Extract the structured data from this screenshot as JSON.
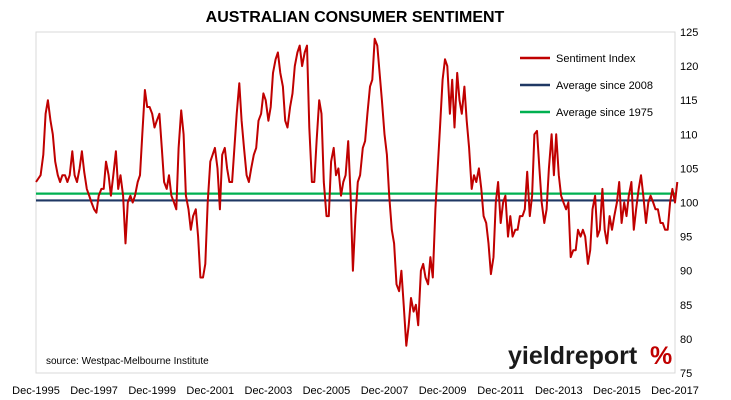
{
  "chart_data": {
    "type": "line",
    "title": "AUSTRALIAN CONSUMER SENTIMENT",
    "ylim": [
      75,
      125
    ],
    "yticks": [
      75,
      80,
      85,
      90,
      95,
      100,
      105,
      110,
      115,
      120,
      125
    ],
    "xtick_labels": [
      "Dec-1995",
      "Dec-1997",
      "Dec-1999",
      "Dec-2001",
      "Dec-2003",
      "Dec-2005",
      "Dec-2007",
      "Dec-2009",
      "Dec-2011",
      "Dec-2013",
      "Dec-2015",
      "Dec-2017"
    ],
    "xlim": [
      1995.92,
      2017.92
    ],
    "grid": false,
    "legend_position": "top-right",
    "source": "source: Westpac-Melbourne Institute",
    "series": [
      {
        "name": "Sentiment Index",
        "color": "#c00000",
        "type": "line",
        "points": [
          [
            1995.92,
            103
          ],
          [
            1996.08,
            104
          ],
          [
            1996.17,
            107
          ],
          [
            1996.25,
            113
          ],
          [
            1996.33,
            115
          ],
          [
            1996.42,
            112
          ],
          [
            1996.5,
            110
          ],
          [
            1996.58,
            106
          ],
          [
            1996.67,
            104
          ],
          [
            1996.75,
            103
          ],
          [
            1996.83,
            104
          ],
          [
            1996.92,
            104
          ],
          [
            1997.0,
            103
          ],
          [
            1997.08,
            104
          ],
          [
            1997.17,
            107.5
          ],
          [
            1997.25,
            104
          ],
          [
            1997.33,
            103
          ],
          [
            1997.42,
            105
          ],
          [
            1997.5,
            107.5
          ],
          [
            1997.58,
            104.5
          ],
          [
            1997.67,
            102
          ],
          [
            1997.75,
            101
          ],
          [
            1997.83,
            100
          ],
          [
            1997.92,
            99
          ],
          [
            1998.0,
            98.5
          ],
          [
            1998.08,
            101
          ],
          [
            1998.17,
            102
          ],
          [
            1998.25,
            102
          ],
          [
            1998.33,
            106
          ],
          [
            1998.42,
            104
          ],
          [
            1998.5,
            101
          ],
          [
            1998.58,
            104
          ],
          [
            1998.67,
            107.5
          ],
          [
            1998.75,
            102
          ],
          [
            1998.83,
            104
          ],
          [
            1998.92,
            101
          ],
          [
            1999.0,
            94
          ],
          [
            1999.08,
            100
          ],
          [
            1999.17,
            101
          ],
          [
            1999.25,
            100
          ],
          [
            1999.33,
            101
          ],
          [
            1999.42,
            103
          ],
          [
            1999.5,
            104
          ],
          [
            1999.58,
            110
          ],
          [
            1999.67,
            116.5
          ],
          [
            1999.75,
            114
          ],
          [
            1999.83,
            114
          ],
          [
            1999.92,
            113
          ],
          [
            2000.0,
            111
          ],
          [
            2000.08,
            112
          ],
          [
            2000.17,
            113
          ],
          [
            2000.25,
            108
          ],
          [
            2000.33,
            103
          ],
          [
            2000.42,
            102
          ],
          [
            2000.5,
            104
          ],
          [
            2000.58,
            101
          ],
          [
            2000.67,
            100
          ],
          [
            2000.75,
            99
          ],
          [
            2000.83,
            108
          ],
          [
            2000.92,
            113.5
          ],
          [
            2001.0,
            110
          ],
          [
            2001.08,
            101
          ],
          [
            2001.17,
            99
          ],
          [
            2001.25,
            96
          ],
          [
            2001.33,
            98
          ],
          [
            2001.42,
            99
          ],
          [
            2001.5,
            95
          ],
          [
            2001.58,
            89
          ],
          [
            2001.67,
            89
          ],
          [
            2001.75,
            91
          ],
          [
            2001.83,
            100
          ],
          [
            2001.92,
            106
          ],
          [
            2002.0,
            107
          ],
          [
            2002.08,
            108
          ],
          [
            2002.17,
            105
          ],
          [
            2002.25,
            99
          ],
          [
            2002.33,
            107
          ],
          [
            2002.42,
            108
          ],
          [
            2002.5,
            105
          ],
          [
            2002.58,
            103
          ],
          [
            2002.67,
            103
          ],
          [
            2002.75,
            108
          ],
          [
            2002.83,
            113
          ],
          [
            2002.92,
            117.5
          ],
          [
            2003.0,
            112
          ],
          [
            2003.08,
            108
          ],
          [
            2003.17,
            104
          ],
          [
            2003.25,
            103
          ],
          [
            2003.33,
            105
          ],
          [
            2003.42,
            107
          ],
          [
            2003.5,
            108
          ],
          [
            2003.58,
            112
          ],
          [
            2003.67,
            113
          ],
          [
            2003.75,
            116
          ],
          [
            2003.83,
            115
          ],
          [
            2003.92,
            112
          ],
          [
            2004.0,
            114
          ],
          [
            2004.08,
            119
          ],
          [
            2004.17,
            121
          ],
          [
            2004.25,
            122
          ],
          [
            2004.33,
            119
          ],
          [
            2004.42,
            117
          ],
          [
            2004.5,
            112
          ],
          [
            2004.58,
            111
          ],
          [
            2004.67,
            114
          ],
          [
            2004.75,
            116
          ],
          [
            2004.83,
            120
          ],
          [
            2004.92,
            122
          ],
          [
            2005.0,
            123
          ],
          [
            2005.08,
            120
          ],
          [
            2005.17,
            122
          ],
          [
            2005.25,
            123
          ],
          [
            2005.33,
            111
          ],
          [
            2005.42,
            103
          ],
          [
            2005.5,
            103
          ],
          [
            2005.58,
            109
          ],
          [
            2005.67,
            115
          ],
          [
            2005.75,
            113
          ],
          [
            2005.83,
            103
          ],
          [
            2005.92,
            98
          ],
          [
            2006.0,
            98
          ],
          [
            2006.08,
            106
          ],
          [
            2006.17,
            108
          ],
          [
            2006.25,
            104
          ],
          [
            2006.33,
            105
          ],
          [
            2006.42,
            101
          ],
          [
            2006.5,
            103
          ],
          [
            2006.58,
            104
          ],
          [
            2006.67,
            109
          ],
          [
            2006.75,
            101
          ],
          [
            2006.83,
            90
          ],
          [
            2006.92,
            98
          ],
          [
            2007.0,
            103
          ],
          [
            2007.08,
            104
          ],
          [
            2007.17,
            108
          ],
          [
            2007.25,
            109
          ],
          [
            2007.33,
            113
          ],
          [
            2007.42,
            117
          ],
          [
            2007.5,
            118
          ],
          [
            2007.58,
            124
          ],
          [
            2007.67,
            123
          ],
          [
            2007.75,
            119
          ],
          [
            2007.83,
            115
          ],
          [
            2007.92,
            110
          ],
          [
            2008.0,
            107
          ],
          [
            2008.08,
            101
          ],
          [
            2008.17,
            96
          ],
          [
            2008.25,
            94
          ],
          [
            2008.33,
            88
          ],
          [
            2008.42,
            87
          ],
          [
            2008.5,
            90
          ],
          [
            2008.58,
            85
          ],
          [
            2008.67,
            79
          ],
          [
            2008.75,
            82
          ],
          [
            2008.83,
            86
          ],
          [
            2008.92,
            84
          ],
          [
            2009.0,
            85
          ],
          [
            2009.08,
            82
          ],
          [
            2009.17,
            90
          ],
          [
            2009.25,
            91
          ],
          [
            2009.33,
            89
          ],
          [
            2009.42,
            88
          ],
          [
            2009.5,
            92
          ],
          [
            2009.58,
            89
          ],
          [
            2009.67,
            99
          ],
          [
            2009.75,
            105
          ],
          [
            2009.83,
            111
          ],
          [
            2009.92,
            118
          ],
          [
            2010.0,
            121
          ],
          [
            2010.08,
            120
          ],
          [
            2010.17,
            113
          ],
          [
            2010.25,
            118
          ],
          [
            2010.33,
            111
          ],
          [
            2010.42,
            119
          ],
          [
            2010.5,
            115
          ],
          [
            2010.58,
            113
          ],
          [
            2010.67,
            117
          ],
          [
            2010.75,
            112
          ],
          [
            2010.83,
            108
          ],
          [
            2010.92,
            102
          ],
          [
            2011.0,
            104
          ],
          [
            2011.08,
            103
          ],
          [
            2011.17,
            105
          ],
          [
            2011.25,
            102
          ],
          [
            2011.33,
            98
          ],
          [
            2011.42,
            97
          ],
          [
            2011.5,
            94
          ],
          [
            2011.58,
            89.5
          ],
          [
            2011.67,
            92
          ],
          [
            2011.75,
            100
          ],
          [
            2011.83,
            103
          ],
          [
            2011.92,
            97
          ],
          [
            2012.0,
            100
          ],
          [
            2012.08,
            101
          ],
          [
            2012.17,
            95
          ],
          [
            2012.25,
            98
          ],
          [
            2012.33,
            95
          ],
          [
            2012.42,
            96
          ],
          [
            2012.5,
            96
          ],
          [
            2012.58,
            98
          ],
          [
            2012.67,
            98
          ],
          [
            2012.75,
            99
          ],
          [
            2012.83,
            104.5
          ],
          [
            2012.92,
            98
          ],
          [
            2013.0,
            101
          ],
          [
            2013.08,
            110
          ],
          [
            2013.17,
            110.5
          ],
          [
            2013.25,
            105
          ],
          [
            2013.33,
            100
          ],
          [
            2013.42,
            97
          ],
          [
            2013.5,
            99
          ],
          [
            2013.58,
            105
          ],
          [
            2013.67,
            110
          ],
          [
            2013.75,
            104
          ],
          [
            2013.83,
            110
          ],
          [
            2013.92,
            104
          ],
          [
            2014.0,
            101
          ],
          [
            2014.08,
            100
          ],
          [
            2014.17,
            99
          ],
          [
            2014.25,
            100
          ],
          [
            2014.33,
            92
          ],
          [
            2014.42,
            93
          ],
          [
            2014.5,
            93
          ],
          [
            2014.58,
            96
          ],
          [
            2014.67,
            95
          ],
          [
            2014.75,
            96
          ],
          [
            2014.83,
            95
          ],
          [
            2014.92,
            91
          ],
          [
            2015.0,
            93
          ],
          [
            2015.08,
            99
          ],
          [
            2015.17,
            101
          ],
          [
            2015.25,
            95
          ],
          [
            2015.33,
            96
          ],
          [
            2015.42,
            102
          ],
          [
            2015.5,
            96
          ],
          [
            2015.58,
            94
          ],
          [
            2015.67,
            98
          ],
          [
            2015.75,
            96
          ],
          [
            2015.83,
            98
          ],
          [
            2015.92,
            100
          ],
          [
            2016.0,
            103
          ],
          [
            2016.08,
            97
          ],
          [
            2016.17,
            100
          ],
          [
            2016.25,
            98
          ],
          [
            2016.33,
            101
          ],
          [
            2016.42,
            103
          ],
          [
            2016.5,
            96
          ],
          [
            2016.58,
            99
          ],
          [
            2016.67,
            102
          ],
          [
            2016.75,
            104
          ],
          [
            2016.83,
            101
          ],
          [
            2016.92,
            97
          ],
          [
            2017.0,
            100
          ],
          [
            2017.08,
            101
          ],
          [
            2017.17,
            100
          ],
          [
            2017.25,
            99
          ],
          [
            2017.33,
            99
          ],
          [
            2017.42,
            97
          ],
          [
            2017.5,
            97
          ],
          [
            2017.58,
            96
          ],
          [
            2017.67,
            96
          ],
          [
            2017.75,
            100
          ],
          [
            2017.83,
            102
          ],
          [
            2017.92,
            100
          ],
          [
            2018.0,
            103
          ]
        ]
      },
      {
        "name": "Average since 2008",
        "color": "#1f3864",
        "type": "hline",
        "value": 100.3
      },
      {
        "name": "Average since 1975",
        "color": "#00b050",
        "type": "hline",
        "value": 101.3
      }
    ]
  },
  "logo": {
    "word": "yieldreport",
    "symbol": "%"
  }
}
